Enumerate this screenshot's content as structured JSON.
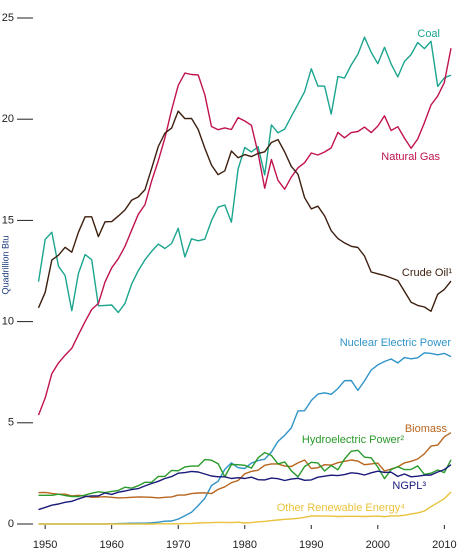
{
  "chart_data": {
    "type": "line",
    "y_label": "Quadrillion Btu",
    "x": [
      1949,
      1950,
      1951,
      1952,
      1953,
      1954,
      1955,
      1956,
      1957,
      1958,
      1959,
      1960,
      1961,
      1962,
      1963,
      1964,
      1965,
      1966,
      1967,
      1968,
      1969,
      1970,
      1971,
      1972,
      1973,
      1974,
      1975,
      1976,
      1977,
      1978,
      1979,
      1980,
      1981,
      1982,
      1983,
      1984,
      1985,
      1986,
      1987,
      1988,
      1989,
      1990,
      1991,
      1992,
      1993,
      1994,
      1995,
      1996,
      1997,
      1998,
      1999,
      2000,
      2001,
      2002,
      2003,
      2004,
      2005,
      2006,
      2007,
      2008,
      2009,
      2010,
      2011
    ],
    "xlim": [
      1949,
      2011
    ],
    "xticks": [
      1950,
      1960,
      1970,
      1980,
      1990,
      2000,
      2010
    ],
    "ylim": [
      0,
      25
    ],
    "yticks": [
      0,
      5,
      10,
      15,
      20,
      25
    ],
    "series": [
      {
        "name": "Coal",
        "color": "#1ba58e",
        "values": [
          11.97,
          14.06,
          14.41,
          12.73,
          12.28,
          10.54,
          12.37,
          13.31,
          13.06,
          10.78,
          10.8,
          10.82,
          10.45,
          10.9,
          11.85,
          12.52,
          13.06,
          13.47,
          13.83,
          13.61,
          13.86,
          14.61,
          13.19,
          14.09,
          13.99,
          14.07,
          14.99,
          15.65,
          15.76,
          14.91,
          17.54,
          18.6,
          18.38,
          18.64,
          17.25,
          19.72,
          19.33,
          19.51,
          20.14,
          20.74,
          21.36,
          22.49,
          21.64,
          21.63,
          20.25,
          22.11,
          22.03,
          22.68,
          23.21,
          24.05,
          23.3,
          22.74,
          23.55,
          22.73,
          22.09,
          22.85,
          23.19,
          23.79,
          23.49,
          23.85,
          21.62,
          22.04,
          22.18
        ]
      },
      {
        "name": "Natural Gas",
        "color": "#c0134e",
        "values": [
          5.38,
          6.23,
          7.42,
          7.96,
          8.34,
          8.68,
          9.35,
          10.0,
          10.6,
          10.9,
          11.95,
          12.66,
          13.11,
          13.72,
          14.51,
          15.3,
          15.78,
          16.94,
          17.95,
          19.07,
          20.45,
          21.67,
          22.28,
          22.21,
          22.19,
          21.21,
          19.64,
          19.48,
          19.57,
          19.49,
          20.08,
          19.91,
          19.7,
          18.32,
          16.59,
          18.01,
          16.98,
          16.54,
          17.14,
          17.6,
          17.85,
          18.33,
          18.23,
          18.38,
          18.58,
          19.35,
          19.08,
          19.34,
          19.39,
          19.61,
          19.34,
          19.66,
          20.17,
          19.44,
          19.63,
          19.07,
          18.56,
          19.02,
          19.82,
          20.7,
          21.14,
          21.81,
          23.51
        ]
      },
      {
        "name": "Crude Oil¹",
        "color": "#3d1f0e",
        "values": [
          10.68,
          11.45,
          13.04,
          13.28,
          13.67,
          13.43,
          14.41,
          15.18,
          15.18,
          14.2,
          14.93,
          14.94,
          15.21,
          15.52,
          16.0,
          16.16,
          16.52,
          17.56,
          18.65,
          19.31,
          19.56,
          20.4,
          20.03,
          20.04,
          19.49,
          18.57,
          17.73,
          17.26,
          17.45,
          18.43,
          18.1,
          18.25,
          18.15,
          18.31,
          18.39,
          18.85,
          18.99,
          18.38,
          17.67,
          17.28,
          16.12,
          15.57,
          15.7,
          15.22,
          14.49,
          14.1,
          13.89,
          13.72,
          13.66,
          13.24,
          12.45,
          12.36,
          12.28,
          12.16,
          12.03,
          11.5,
          10.96,
          10.8,
          10.72,
          10.51,
          11.35,
          11.59,
          12.0
        ]
      },
      {
        "name": "Nuclear Electric Power",
        "color": "#2f94c8",
        "values": [
          0,
          0,
          0,
          0,
          0,
          0,
          0,
          0,
          0,
          0,
          0,
          0.01,
          0.02,
          0.03,
          0.04,
          0.04,
          0.04,
          0.06,
          0.09,
          0.14,
          0.15,
          0.24,
          0.41,
          0.58,
          0.91,
          1.27,
          1.9,
          2.11,
          2.7,
          3.02,
          2.78,
          2.74,
          3.01,
          3.13,
          3.2,
          3.55,
          4.08,
          4.38,
          4.75,
          5.59,
          5.6,
          6.1,
          6.42,
          6.48,
          6.41,
          6.69,
          7.08,
          7.09,
          6.6,
          7.07,
          7.61,
          7.86,
          8.03,
          8.15,
          7.96,
          8.22,
          8.16,
          8.21,
          8.46,
          8.43,
          8.36,
          8.43,
          8.27
        ]
      },
      {
        "name": "Biomass",
        "color": "#b8651f",
        "values": [
          1.55,
          1.56,
          1.51,
          1.47,
          1.47,
          1.39,
          1.42,
          1.39,
          1.32,
          1.33,
          1.35,
          1.32,
          1.29,
          1.3,
          1.32,
          1.34,
          1.33,
          1.32,
          1.29,
          1.32,
          1.34,
          1.43,
          1.43,
          1.5,
          1.53,
          1.54,
          1.5,
          1.71,
          1.84,
          2.04,
          2.15,
          2.48,
          2.6,
          2.66,
          2.9,
          2.97,
          2.97,
          2.86,
          2.84,
          3.02,
          3.16,
          2.74,
          2.78,
          2.93,
          2.91,
          3.03,
          3.1,
          3.16,
          3.11,
          2.93,
          2.97,
          3.01,
          2.62,
          2.71,
          2.82,
          3.02,
          3.1,
          3.21,
          3.47,
          3.85,
          3.9,
          4.31,
          4.51
        ]
      },
      {
        "name": "Hydroelectric Power²",
        "color": "#2a9a2a",
        "values": [
          1.42,
          1.42,
          1.42,
          1.47,
          1.41,
          1.36,
          1.36,
          1.43,
          1.52,
          1.59,
          1.55,
          1.61,
          1.66,
          1.82,
          1.77,
          1.89,
          2.06,
          2.06,
          2.35,
          2.35,
          2.65,
          2.63,
          2.82,
          2.86,
          2.86,
          3.18,
          3.15,
          2.98,
          2.33,
          2.94,
          2.93,
          2.9,
          2.76,
          3.27,
          3.53,
          3.39,
          2.97,
          3.07,
          2.63,
          2.33,
          2.84,
          3.05,
          3.02,
          2.62,
          2.89,
          2.68,
          3.21,
          3.59,
          3.64,
          3.3,
          3.27,
          2.81,
          2.24,
          2.69,
          2.83,
          2.69,
          2.7,
          2.87,
          2.45,
          2.51,
          2.67,
          2.54,
          3.17
        ]
      },
      {
        "name": "NGPL³",
        "color": "#1a1a7a",
        "values": [
          0.71,
          0.82,
          0.93,
          0.99,
          1.07,
          1.12,
          1.24,
          1.35,
          1.39,
          1.39,
          1.53,
          1.46,
          1.57,
          1.63,
          1.7,
          1.75,
          1.88,
          2.0,
          2.11,
          2.25,
          2.34,
          2.51,
          2.54,
          2.6,
          2.57,
          2.47,
          2.37,
          2.33,
          2.33,
          2.25,
          2.29,
          2.25,
          2.31,
          2.19,
          2.18,
          2.27,
          2.24,
          2.15,
          2.22,
          2.26,
          2.16,
          2.18,
          2.31,
          2.36,
          2.41,
          2.39,
          2.44,
          2.53,
          2.5,
          2.42,
          2.53,
          2.61,
          2.55,
          2.56,
          2.35,
          2.47,
          2.33,
          2.36,
          2.41,
          2.42,
          2.57,
          2.69,
          2.93
        ]
      },
      {
        "name": "Other Renewable Energy⁴",
        "color": "#e8c23a",
        "values": [
          0,
          0,
          0,
          0,
          0,
          0,
          0,
          0,
          0,
          0,
          0,
          0,
          0,
          0,
          0,
          0,
          0,
          0,
          0.01,
          0.01,
          0.01,
          0.01,
          0.02,
          0.03,
          0.05,
          0.06,
          0.07,
          0.08,
          0.08,
          0.07,
          0.09,
          0.05,
          0.07,
          0.11,
          0.13,
          0.17,
          0.2,
          0.23,
          0.25,
          0.28,
          0.33,
          0.39,
          0.4,
          0.39,
          0.39,
          0.37,
          0.38,
          0.38,
          0.38,
          0.37,
          0.38,
          0.39,
          0.36,
          0.4,
          0.4,
          0.43,
          0.5,
          0.55,
          0.64,
          0.86,
          1.05,
          1.25,
          1.58
        ]
      }
    ]
  }
}
